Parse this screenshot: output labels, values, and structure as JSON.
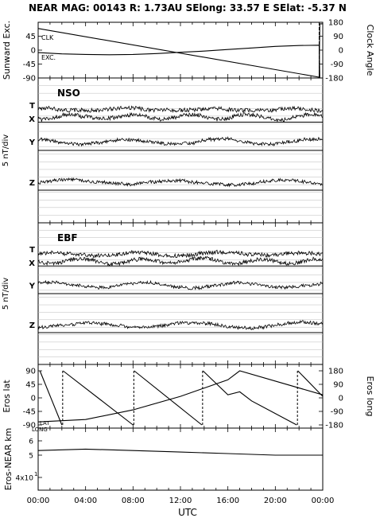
{
  "header": {
    "title": "NEAR MAG: 00143  R: 1.73AU  SElong:   33.57 E  SElat:   -5.37 N"
  },
  "chart_data": [
    {
      "type": "line",
      "ylabel_left": "Sunward Exc.",
      "ylabel_right": "Clock Angle",
      "yticks_left": [
        "45",
        "0",
        "-45",
        "-90"
      ],
      "yticks_right": [
        "180",
        "90",
        "0",
        "-90",
        "-180"
      ],
      "ylim_left": [
        -90,
        90
      ],
      "ylim_right": [
        -180,
        180
      ],
      "annotations": [
        "CLK",
        "EXC."
      ],
      "series": [
        {
          "key": "clk",
          "axis": "right",
          "x": [
            0,
            23.7,
            23.75,
            24
          ],
          "y": [
            140,
            -175,
            170,
            170
          ]
        },
        {
          "key": "exc",
          "axis": "left",
          "x": [
            0,
            2,
            4,
            6,
            8,
            10,
            12,
            14,
            16,
            18,
            20,
            22,
            23.7,
            23.75,
            24
          ],
          "y": [
            -8,
            -12,
            -14,
            -15,
            -14,
            -11,
            -7,
            -3,
            2,
            7,
            12,
            15,
            16,
            -90,
            -90
          ]
        }
      ]
    },
    {
      "type": "line",
      "label": "NSO",
      "ylabel": "5 nT/div",
      "traces": [
        "T",
        "X",
        "Y",
        "Z"
      ]
    },
    {
      "type": "line",
      "label": "EBF",
      "ylabel": "5 nT/div",
      "traces": [
        "T",
        "X",
        "Y",
        "Z"
      ]
    },
    {
      "type": "line",
      "ylabel_left": "Eros lat",
      "ylabel_right": "Eros long",
      "yticks_left": [
        "90",
        "45",
        "0",
        "-45",
        "-90"
      ],
      "yticks_right": [
        "180",
        "90",
        "0",
        "-90",
        "-180"
      ],
      "ylim_left": [
        -90,
        90
      ],
      "ylim_right": [
        -180,
        180
      ],
      "annotations": [
        "LAT",
        "LONG"
      ],
      "series": [
        {
          "key": "lat",
          "axis": "left",
          "x": [
            0,
            4,
            8,
            12,
            16,
            17,
            24
          ],
          "y": [
            -80,
            -72,
            -40,
            5,
            60,
            90,
            10
          ]
        },
        {
          "key": "long",
          "axis": "right",
          "segments": [
            {
              "x": [
                0.15,
                2
              ],
              "y": [
                180,
                -180
              ]
            },
            {
              "x": [
                2.1,
                8
              ],
              "y": [
                180,
                -180
              ]
            },
            {
              "x": [
                8.1,
                13.8
              ],
              "y": [
                180,
                -180
              ]
            },
            {
              "x": [
                13.9,
                16,
                17,
                18,
                21.8
              ],
              "y": [
                180,
                20,
                40,
                -20,
                -180
              ]
            },
            {
              "x": [
                21.9,
                24
              ],
              "y": [
                180,
                10
              ]
            }
          ]
        }
      ]
    },
    {
      "type": "line",
      "ylabel": "Eros-NEAR km",
      "yscale": "log",
      "yticks": [
        "6",
        "5",
        "4x10"
      ],
      "ytick_superscript": "1",
      "series": [
        {
          "key": "dist",
          "x": [
            0,
            4,
            8,
            12,
            16,
            20,
            24
          ],
          "y": [
            53,
            54,
            53,
            52,
            51,
            50,
            50
          ]
        }
      ]
    }
  ],
  "xaxis": {
    "label": "UTC",
    "ticks": [
      "00:00",
      "04:00",
      "08:00",
      "12:00",
      "16:00",
      "20:00",
      "00:00"
    ]
  }
}
